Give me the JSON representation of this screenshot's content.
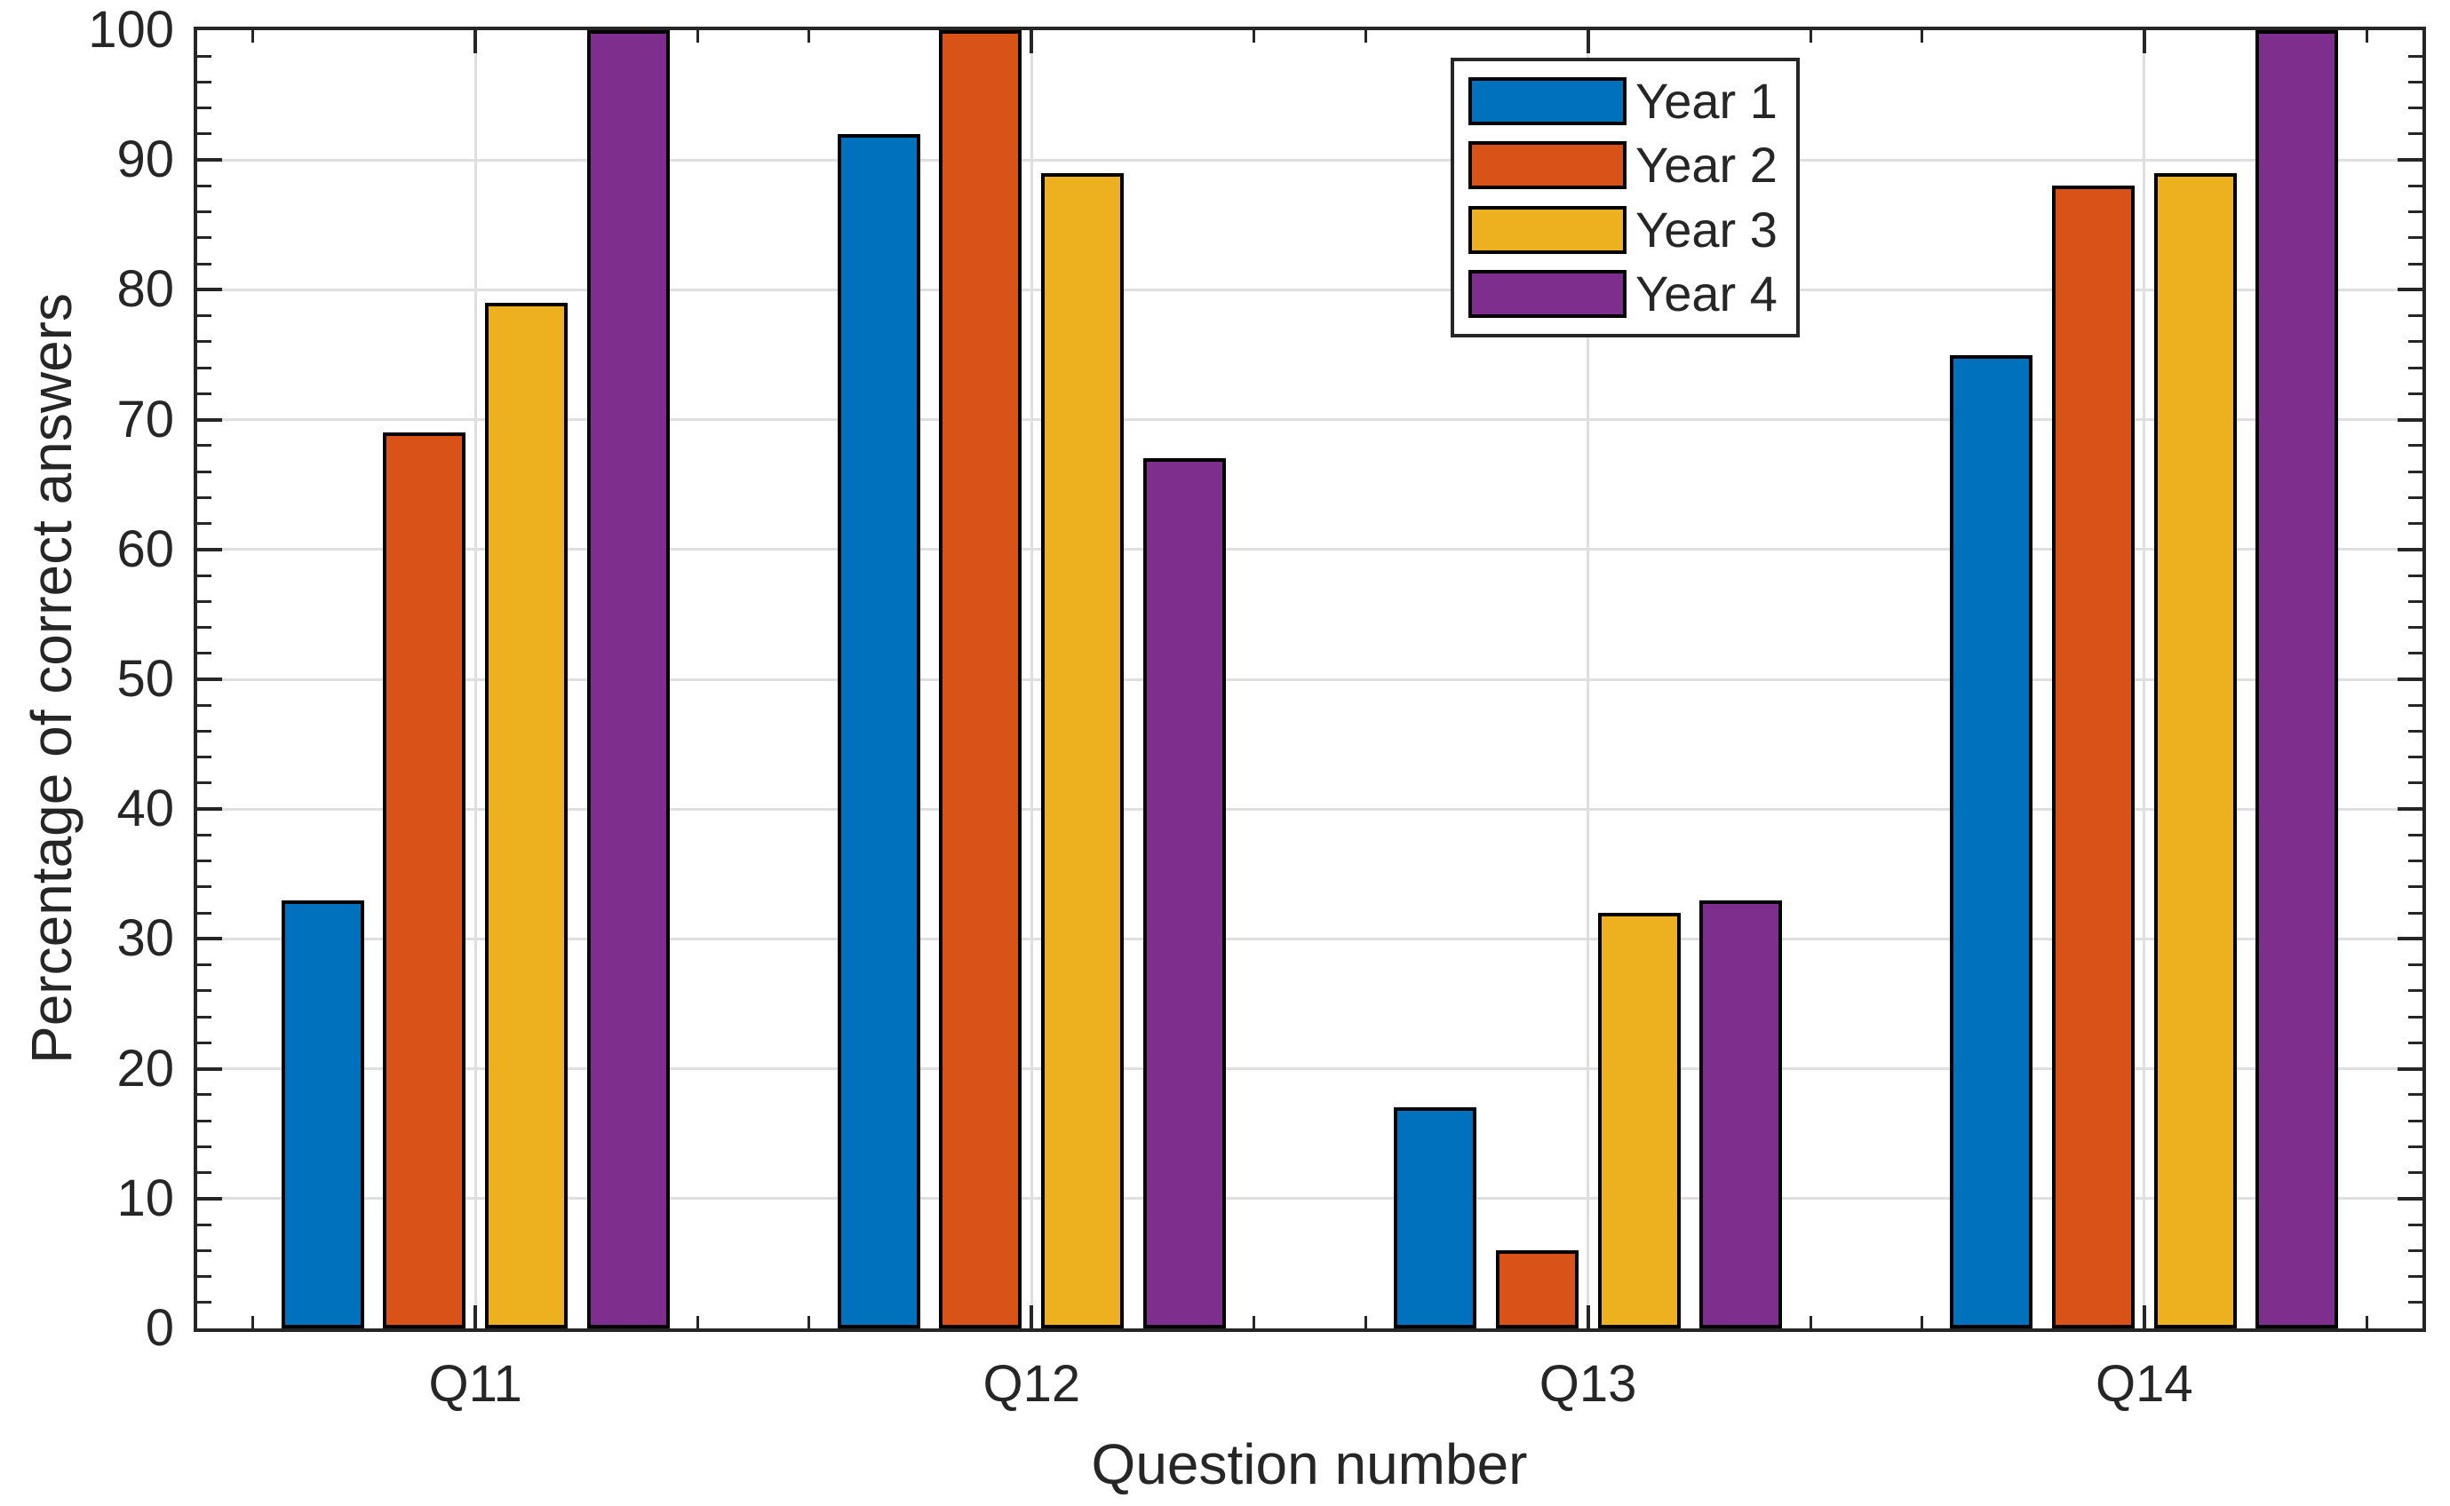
{
  "chart_data": {
    "type": "bar",
    "title": "",
    "categories": [
      "Q11",
      "Q12",
      "Q13",
      "Q14"
    ],
    "series": [
      {
        "name": "Year 1",
        "color": "#0072BD",
        "values": [
          33,
          92,
          17,
          75
        ]
      },
      {
        "name": "Year 2",
        "color": "#D95319",
        "values": [
          69,
          100,
          6,
          88
        ]
      },
      {
        "name": "Year 3",
        "color": "#EDB120",
        "values": [
          79,
          89,
          32,
          89
        ]
      },
      {
        "name": "Year 4",
        "color": "#7E2F8E",
        "values": [
          100,
          67,
          33,
          100
        ]
      }
    ],
    "xlabel": "Question number",
    "ylabel": "Percentage of correct answers",
    "ylim": [
      0,
      100
    ],
    "yticks": [
      0,
      10,
      20,
      30,
      40,
      50,
      60,
      70,
      80,
      90,
      100
    ],
    "y_minor_step": 2,
    "grid": true,
    "legend_position": "inside-top-right",
    "bar_edge_color": "#000000",
    "grid_color": "#dfdfdf",
    "axis_color": "#262626",
    "text_color": "#262626",
    "plot_background": "#ffffff"
  }
}
